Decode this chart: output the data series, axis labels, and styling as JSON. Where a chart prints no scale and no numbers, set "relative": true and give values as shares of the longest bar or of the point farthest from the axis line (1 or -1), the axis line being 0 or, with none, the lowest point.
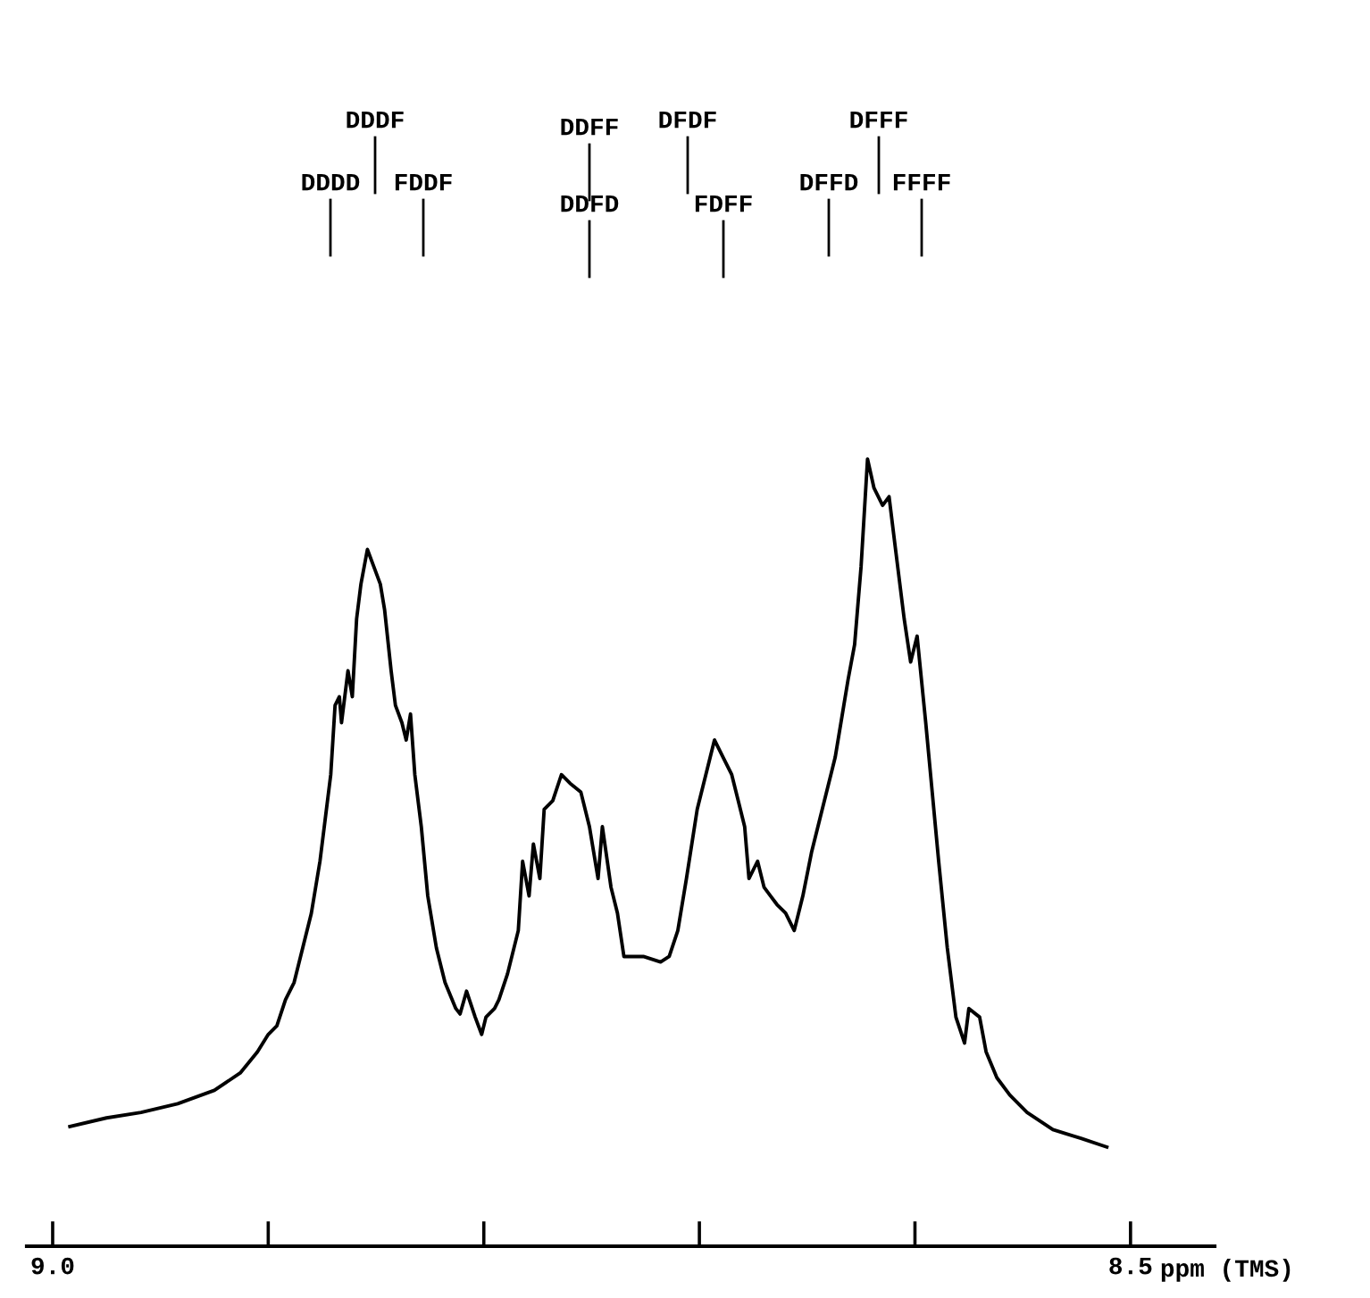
{
  "chart_data": {
    "type": "line",
    "relative": true,
    "color": "#000000",
    "xlabel": "ppm (TMS)",
    "xlim": [
      9.012,
      8.461
    ],
    "xticks": [
      {
        "value": 9.0,
        "label": "9.0"
      },
      {
        "value": 8.9,
        "label": null
      },
      {
        "value": 8.8,
        "label": null
      },
      {
        "value": 8.7,
        "label": null
      },
      {
        "value": 8.6,
        "label": null
      },
      {
        "value": 8.5,
        "label": "8.5"
      }
    ],
    "tick_labels": "x",
    "grid": false,
    "legend": false,
    "marker": "none",
    "line_style": "solid",
    "x": [
      8.992,
      8.975,
      8.959,
      8.942,
      8.925,
      8.913,
      8.905,
      8.9,
      8.896,
      8.892,
      8.888,
      8.884,
      8.88,
      8.876,
      8.871,
      8.869,
      8.867,
      8.866,
      8.863,
      8.861,
      8.859,
      8.857,
      8.854,
      8.851,
      8.848,
      8.846,
      8.843,
      8.841,
      8.838,
      8.836,
      8.834,
      8.832,
      8.829,
      8.826,
      8.822,
      8.818,
      8.813,
      8.811,
      8.808,
      8.804,
      8.801,
      8.799,
      8.795,
      8.793,
      8.789,
      8.784,
      8.782,
      8.779,
      8.777,
      8.774,
      8.772,
      8.768,
      8.764,
      8.76,
      8.755,
      8.751,
      8.747,
      8.745,
      8.741,
      8.738,
      8.735,
      8.726,
      8.718,
      8.714,
      8.71,
      8.706,
      8.701,
      8.697,
      8.693,
      8.689,
      8.685,
      8.682,
      8.679,
      8.677,
      8.673,
      8.67,
      8.667,
      8.664,
      8.66,
      8.656,
      8.652,
      8.648,
      8.643,
      8.639,
      8.637,
      8.633,
      8.631,
      8.628,
      8.625,
      8.622,
      8.619,
      8.615,
      8.612,
      8.609,
      8.605,
      8.602,
      8.599,
      8.595,
      8.592,
      8.589,
      8.585,
      8.581,
      8.577,
      8.575,
      8.57,
      8.567,
      8.562,
      8.556,
      8.548,
      8.536,
      8.523,
      8.511
    ],
    "values": [
      0.152,
      0.163,
      0.17,
      0.181,
      0.198,
      0.22,
      0.247,
      0.269,
      0.28,
      0.313,
      0.335,
      0.379,
      0.423,
      0.489,
      0.599,
      0.687,
      0.698,
      0.665,
      0.731,
      0.698,
      0.797,
      0.841,
      0.885,
      0.863,
      0.841,
      0.808,
      0.731,
      0.687,
      0.665,
      0.643,
      0.676,
      0.599,
      0.533,
      0.445,
      0.379,
      0.335,
      0.302,
      0.295,
      0.324,
      0.291,
      0.269,
      0.291,
      0.302,
      0.313,
      0.346,
      0.401,
      0.489,
      0.445,
      0.511,
      0.467,
      0.555,
      0.566,
      0.599,
      0.588,
      0.577,
      0.533,
      0.467,
      0.533,
      0.456,
      0.423,
      0.368,
      0.368,
      0.361,
      0.368,
      0.401,
      0.467,
      0.555,
      0.599,
      0.643,
      0.621,
      0.599,
      0.566,
      0.533,
      0.467,
      0.489,
      0.456,
      0.445,
      0.434,
      0.423,
      0.401,
      0.445,
      0.5,
      0.555,
      0.599,
      0.621,
      0.687,
      0.72,
      0.764,
      0.863,
      1.0,
      0.963,
      0.941,
      0.952,
      0.885,
      0.797,
      0.742,
      0.775,
      0.665,
      0.577,
      0.489,
      0.379,
      0.291,
      0.258,
      0.302,
      0.291,
      0.247,
      0.214,
      0.192,
      0.17,
      0.148,
      0.137,
      0.126
    ],
    "annotations": [
      "DDDD",
      "DDDF",
      "FDDF",
      "DDFF",
      "DDFD",
      "DFDF",
      "FDFF",
      "DFFD",
      "DFFF",
      "FFFF"
    ]
  }
}
